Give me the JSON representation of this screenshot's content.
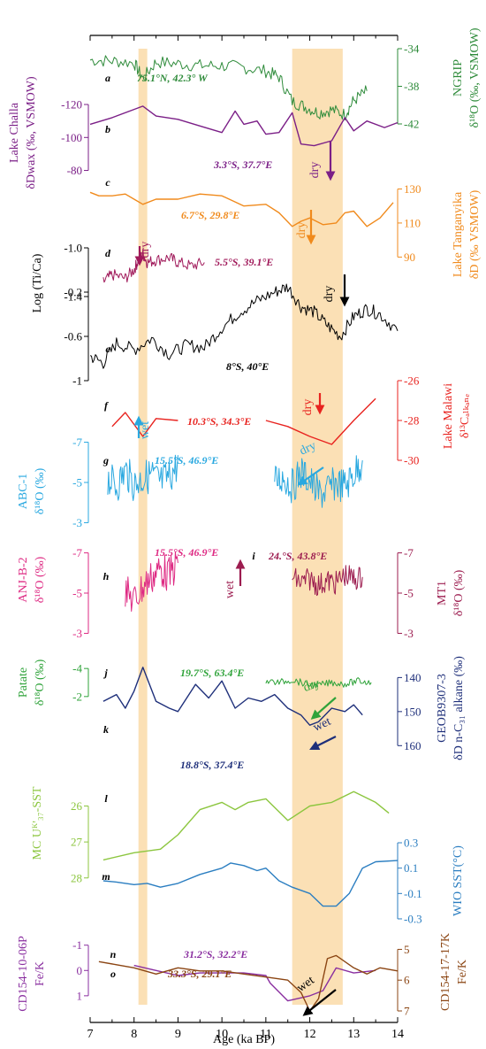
{
  "chart_data": {
    "type": "line",
    "x_axis": {
      "label": "Age (ka BP)",
      "range": [
        7,
        14
      ],
      "ticks": [
        "7",
        "8",
        "9",
        "10",
        "11",
        "12",
        "13",
        "14"
      ]
    },
    "shaded_bands": [
      [
        8.1,
        8.3
      ],
      [
        11.6,
        12.75
      ]
    ],
    "colors": {
      "a": "#2e8b3a",
      "b": "#7b1f87",
      "c": "#f08a1c",
      "d": "#a0195a",
      "e": "#000000",
      "f": "#e8231f",
      "g": "#29a8e0",
      "h": "#de2a83",
      "i": "#9c1c4f",
      "j": "#2fa33a",
      "k": "#1e2f7a",
      "l": "#8cc63f",
      "m": "#2b7ec1",
      "n": "#8a2fa0",
      "o": "#8b4513",
      "band": "#fbe0b5"
    },
    "panels": [
      {
        "letter": "a",
        "site": "75.1°N, 42.3° W",
        "axis_label_1": "NGRIP",
        "axis_label_2": "δ¹⁸O (‰, VSMOW)",
        "ticks": [
          "-34",
          "-38",
          "-42"
        ],
        "ylim": [
          -34,
          -42
        ],
        "x": [
          7.0,
          7.5,
          8.0,
          8.2,
          8.5,
          9.0,
          9.5,
          10.0,
          10.5,
          11.0,
          11.3,
          11.6,
          11.9,
          12.2,
          12.5,
          12.8,
          13.0,
          13.3
        ],
        "y": [
          -35.2,
          -35.3,
          -35.5,
          -37.2,
          -35.4,
          -35.6,
          -35.8,
          -35.8,
          -36.0,
          -36.4,
          -37.0,
          -39.6,
          -40.2,
          -40.8,
          -40.5,
          -41.0,
          -39.5,
          -38.5
        ]
      },
      {
        "letter": "b",
        "site": "3.3°S, 37.7°E",
        "axis_label_1": "Lake Challa",
        "axis_label_2": "δDwax (‰, VSMOW)",
        "ticks": [
          "-120",
          "-100",
          "-80"
        ],
        "ylim": [
          -127,
          -76
        ],
        "x": [
          7.0,
          7.5,
          8.0,
          8.2,
          8.5,
          9.0,
          9.5,
          10.0,
          10.3,
          10.5,
          10.8,
          11.0,
          11.3,
          11.6,
          11.8,
          12.1,
          12.5,
          12.8,
          13.0,
          13.3,
          13.7,
          14.0
        ],
        "y": [
          -108,
          -112,
          -117,
          -119,
          -113,
          -111,
          -107,
          -103,
          -116,
          -108,
          -110,
          -102,
          -103,
          -115,
          -96,
          -95,
          -98,
          -112,
          -104,
          -110,
          -106,
          -109
        ]
      },
      {
        "letter": "c",
        "site": "6.7°S, 29.8°E",
        "axis_label_1": "Lake Tanganyika",
        "axis_label_2": "δD (‰ VSMOW)",
        "ticks": [
          "130",
          "110",
          "90"
        ],
        "ylim": [
          137,
          85
        ],
        "x": [
          7.0,
          7.2,
          7.5,
          7.8,
          8.0,
          8.2,
          8.5,
          9.0,
          9.5,
          10.0,
          10.5,
          11.0,
          11.3,
          11.6,
          11.8,
          12.0,
          12.3,
          12.6,
          12.8,
          13.0,
          13.3,
          13.6,
          13.9
        ],
        "y": [
          128,
          126,
          126,
          127,
          124,
          121,
          124,
          124,
          127,
          126,
          120,
          121,
          116,
          108,
          111,
          113,
          109,
          110,
          116,
          117,
          108,
          113,
          122
        ]
      },
      {
        "letter": "d",
        "site": "5.5°S, 39.1°E",
        "axis_label_1": "Log (Ti/Ca)",
        "ticks": [
          "-1.0",
          "-1.4"
        ],
        "ylim": [
          -1.0,
          -1.4
        ],
        "x": [
          7.3,
          7.5,
          7.8,
          8.0,
          8.1,
          8.2,
          8.3,
          8.5,
          8.8,
          9.0,
          9.3,
          9.6
        ],
        "y": [
          -1.28,
          -1.22,
          -1.25,
          -1.18,
          -1.1,
          -1.05,
          -1.12,
          -1.1,
          -1.08,
          -1.12,
          -1.15,
          -1.12
        ]
      },
      {
        "letter": "e",
        "site": "8°S, 40°E",
        "ticks": [
          "-0.2",
          "-0.6",
          "-1"
        ],
        "ylim": [
          -0.2,
          -1.0
        ],
        "x": [
          7.0,
          7.3,
          7.6,
          8.0,
          8.4,
          8.8,
          9.2,
          9.6,
          10.0,
          10.4,
          10.8,
          11.2,
          11.5,
          11.8,
          12.1,
          12.4,
          12.7,
          13.0,
          13.3,
          13.6,
          14.0
        ],
        "y": [
          -0.78,
          -0.84,
          -0.66,
          -0.72,
          -0.62,
          -0.76,
          -0.68,
          -0.7,
          -0.52,
          -0.38,
          -0.28,
          -0.2,
          -0.15,
          -0.33,
          -0.38,
          -0.5,
          -0.6,
          -0.42,
          -0.35,
          -0.4,
          -0.55
        ]
      },
      {
        "letter": "f",
        "site": "10.3°S, 34.3°E",
        "axis_label_1": "Lake Malawi",
        "axis_label_2": "δ¹³Cₐₗₖₐₙₑ",
        "ticks": [
          "-26",
          "-28",
          "-30"
        ],
        "ylim": [
          -26,
          -30
        ],
        "x": [
          7.5,
          7.8,
          8.2,
          8.5,
          9.0,
          10.0,
          11.0,
          11.5,
          12.0,
          12.5,
          13.0,
          13.5
        ],
        "y": [
          -28.3,
          -27.6,
          -28.8,
          -27.9,
          -28.0,
          -27.9,
          -28.0,
          -28.3,
          -28.8,
          -29.2,
          -28.0,
          -26.9
        ]
      },
      {
        "letter": "g",
        "site": "15.5°S, 46.9°E",
        "axis_label_1": "ABC-1",
        "axis_label_2": "δ¹⁸O (‰)",
        "ticks": [
          "-7",
          "-5",
          "-3"
        ],
        "ylim": [
          -7.2,
          -2.8
        ],
        "x": [
          7.4,
          7.6,
          7.8,
          8.0,
          8.2,
          8.4,
          8.6,
          8.8,
          9.0,
          11.2,
          11.4,
          11.6,
          11.8,
          12.0,
          12.2,
          12.4,
          12.6,
          12.8,
          13.0,
          13.2
        ],
        "y": [
          -5.2,
          -4.8,
          -5.6,
          -4.9,
          -5.2,
          -5.4,
          -5.0,
          -5.3,
          -5.9,
          -5.0,
          -5.3,
          -4.8,
          -5.5,
          -5.1,
          -4.4,
          -4.6,
          -5.0,
          -4.8,
          -5.4,
          -6.1
        ]
      },
      {
        "letter": "h",
        "site": "15.5°S, 46.9°E",
        "axis_label_1": "ANJ-B-2",
        "axis_label_2": "δ¹⁸O (‰)",
        "ticks": [
          "-7",
          "-5",
          "-3"
        ],
        "ylim": [
          -7.2,
          -2.8
        ],
        "x": [
          7.8,
          8.0,
          8.2,
          8.4,
          8.6,
          8.8,
          9.0
        ],
        "y": [
          -5.1,
          -4.6,
          -5.3,
          -5.8,
          -6.2,
          -5.9,
          -6.5
        ]
      },
      {
        "letter": "i",
        "site": "24.°S, 43.8°E",
        "axis_label_1": "MT1",
        "axis_label_2": "δ¹⁸O (‰)",
        "ticks": [
          "-7",
          "-5",
          "-3"
        ],
        "ylim": [
          -7.2,
          -2.8
        ],
        "x": [
          11.6,
          11.8,
          12.0,
          12.2,
          12.4,
          12.6,
          12.8,
          13.0,
          13.2
        ],
        "y": [
          -5.8,
          -5.5,
          -5.7,
          -5.4,
          -5.6,
          -5.5,
          -5.9,
          -5.7,
          -5.8
        ]
      },
      {
        "letter": "j",
        "site": "19.7°S, 63.4°E",
        "axis_label_1": "Patate",
        "axis_label_2": "δ¹⁸O (‰)",
        "ticks": [
          "-4",
          "-2"
        ],
        "ylim": [
          -4.2,
          -1.8
        ],
        "x": [
          11.0,
          11.3,
          11.6,
          11.9,
          12.2,
          12.5,
          12.8,
          13.1,
          13.4
        ],
        "y": [
          -3.1,
          -3.0,
          -3.2,
          -2.9,
          -2.8,
          -3.0,
          -2.9,
          -3.1,
          -3.0
        ]
      },
      {
        "letter": "k",
        "site": "18.8°S, 37.4°E",
        "axis_label_1": "GEOB9307-3",
        "axis_label_2": "δD n-C₃₁ alkane (‰)",
        "ticks": [
          "140",
          "150",
          "160"
        ],
        "ylim": [
          136,
          162
        ],
        "x": [
          7.3,
          7.6,
          7.8,
          8.0,
          8.2,
          8.5,
          8.8,
          9.0,
          9.4,
          9.7,
          10.0,
          10.3,
          10.6,
          10.9,
          11.2,
          11.5,
          11.8,
          12.0,
          12.2,
          12.5,
          12.8,
          13.0,
          13.2
        ],
        "y": [
          147,
          145,
          149,
          144,
          137,
          147,
          149,
          150,
          142,
          146,
          141,
          149,
          146,
          147,
          145,
          149,
          151,
          154,
          153,
          149,
          150,
          148,
          151
        ]
      },
      {
        "letter": "l",
        "axis_label_1": "MC Uᴷ'₃₇-SST",
        "ticks": [
          "28",
          "27",
          "26"
        ],
        "ylim": [
          25.2,
          28.4
        ],
        "x": [
          7.3,
          8.0,
          8.6,
          9.0,
          9.5,
          10.0,
          10.3,
          10.6,
          11.0,
          11.5,
          12.0,
          12.5,
          13.0,
          13.5,
          13.8
        ],
        "y": [
          27.5,
          27.3,
          27.2,
          26.8,
          26.1,
          25.9,
          26.1,
          25.9,
          25.8,
          26.4,
          26.0,
          25.9,
          25.6,
          25.9,
          26.2
        ]
      },
      {
        "letter": "m",
        "axis_label_1": "WIO SST(°C)",
        "ticks": [
          "0.3",
          "0.1",
          "-0.1",
          "-0.3"
        ],
        "ylim": [
          0.37,
          -0.37
        ],
        "x": [
          7.3,
          7.6,
          8.0,
          8.3,
          8.6,
          9.0,
          9.5,
          10.0,
          10.2,
          10.5,
          10.8,
          11.0,
          11.3,
          11.6,
          12.0,
          12.3,
          12.6,
          12.9,
          13.2,
          13.5,
          14.0
        ],
        "y": [
          0.0,
          -0.01,
          -0.03,
          -0.02,
          -0.05,
          -0.02,
          0.05,
          0.1,
          0.14,
          0.12,
          0.08,
          0.1,
          0.0,
          -0.05,
          -0.1,
          -0.2,
          -0.2,
          -0.1,
          0.1,
          0.15,
          0.16
        ]
      },
      {
        "letter": "n",
        "site": "31.2°S, 32.2°E",
        "axis_label_1": "CD154-10-06P",
        "axis_label_2": "Fe/K",
        "ticks": [
          "-1",
          "0",
          "1"
        ],
        "ylim": [
          -1.2,
          1.6
        ],
        "x": [
          8.0,
          8.5,
          9.0,
          9.5,
          10.0,
          10.5,
          11.0,
          11.1,
          11.5,
          12.0,
          12.3,
          12.6,
          13.0,
          13.5
        ],
        "y": [
          -0.2,
          0.0,
          0.2,
          0.1,
          0.1,
          0.1,
          0.2,
          0.5,
          1.2,
          1.0,
          0.8,
          -0.1,
          0.1,
          0.0
        ]
      },
      {
        "letter": "o",
        "site": "33.3°S, 29.1°E",
        "axis_label_1": "CD154-17-17K",
        "axis_label_2": "Fe/K",
        "ticks": [
          "5",
          "6",
          "7"
        ],
        "ylim": [
          4.7,
          7.0
        ],
        "x": [
          7.2,
          7.6,
          8.0,
          8.5,
          9.0,
          9.5,
          10.0,
          10.5,
          11.0,
          11.5,
          11.8,
          12.0,
          12.2,
          12.4,
          12.6,
          13.0,
          13.3,
          13.6,
          14.0
        ],
        "y": [
          5.4,
          5.5,
          5.6,
          5.8,
          5.6,
          5.7,
          5.7,
          5.8,
          5.9,
          6.0,
          6.4,
          7.0,
          6.6,
          5.3,
          5.2,
          5.6,
          5.8,
          5.6,
          5.7
        ]
      }
    ],
    "annotations": [
      {
        "text": "dry",
        "panel": "b"
      },
      {
        "text": "dry",
        "panel": "c"
      },
      {
        "text": "dry",
        "panel": "d"
      },
      {
        "text": "dry",
        "panel": "e"
      },
      {
        "text": "dry",
        "panel": "f"
      },
      {
        "text": "wet",
        "panel": "g"
      },
      {
        "text": "dry",
        "panel": "g"
      },
      {
        "text": "wet",
        "panel": "i"
      },
      {
        "text": "dry",
        "panel": "j"
      },
      {
        "text": "wet",
        "panel": "k"
      },
      {
        "text": "wet",
        "panel": "n"
      }
    ]
  }
}
